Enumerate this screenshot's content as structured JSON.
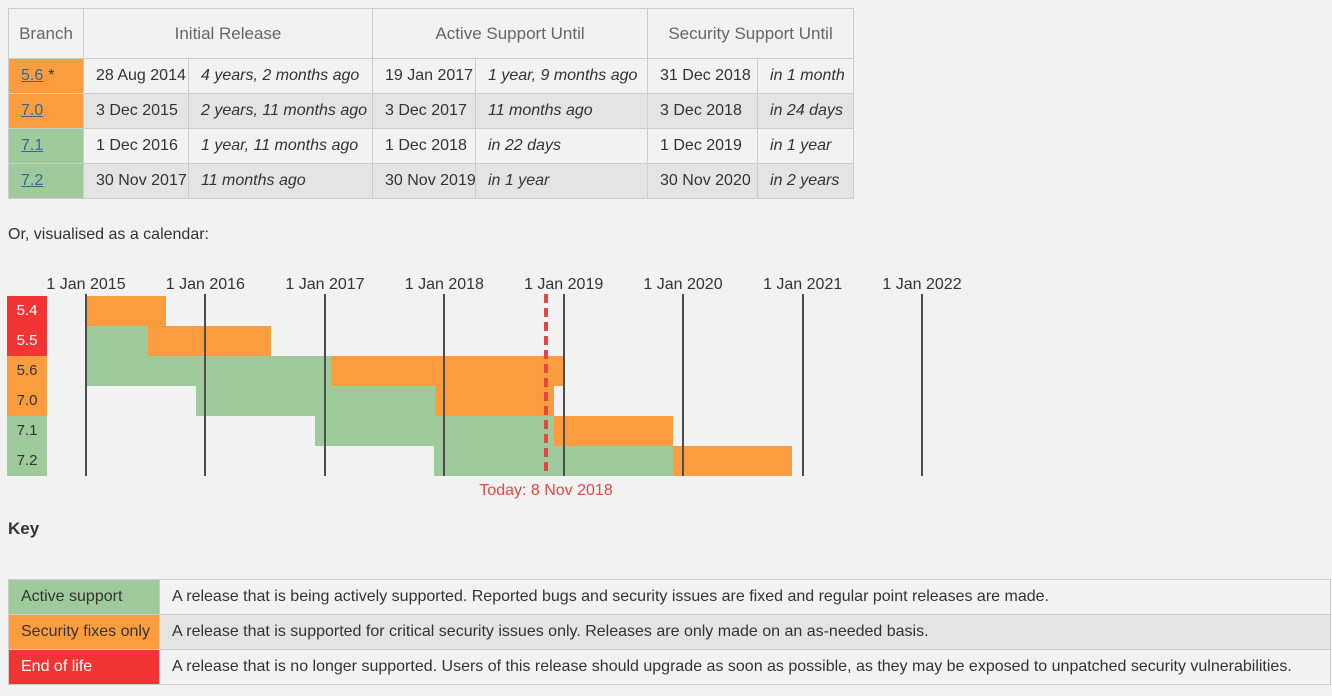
{
  "colors": {
    "active_support": "#9fca9c",
    "security_fixes": "#fb9d3f",
    "end_of_life": "#f23434",
    "link": "#336699",
    "today_marker": "#e84444",
    "page_background": "#f2f2f2",
    "alt_row": "#e4e4e4",
    "border": "#cccccc"
  },
  "support_table": {
    "headers": {
      "branch": "Branch",
      "initial": "Initial Release",
      "active": "Active Support Until",
      "security": "Security Support Until"
    },
    "rows": [
      {
        "branch": "5.6",
        "suffix": "*",
        "branch_status": "security",
        "initial": {
          "date": "28 Aug 2014",
          "relative": "4 years, 2 months ago"
        },
        "active": {
          "date": "19 Jan 2017",
          "relative": "1 year, 9 months ago"
        },
        "security": {
          "date": "31 Dec 2018",
          "relative": "in 1 month"
        }
      },
      {
        "branch": "7.0",
        "suffix": "",
        "branch_status": "security",
        "initial": {
          "date": "3 Dec 2015",
          "relative": "2 years, 11 months ago"
        },
        "active": {
          "date": "3 Dec 2017",
          "relative": "11 months ago"
        },
        "security": {
          "date": "3 Dec 2018",
          "relative": "in 24 days"
        }
      },
      {
        "branch": "7.1",
        "suffix": "",
        "branch_status": "active",
        "initial": {
          "date": "1 Dec 2016",
          "relative": "1 year, 11 months ago"
        },
        "active": {
          "date": "1 Dec 2018",
          "relative": "in 22 days"
        },
        "security": {
          "date": "1 Dec 2019",
          "relative": "in 1 year"
        }
      },
      {
        "branch": "7.2",
        "suffix": "",
        "branch_status": "active",
        "initial": {
          "date": "30 Nov 2017",
          "relative": "11 months ago"
        },
        "active": {
          "date": "30 Nov 2019",
          "relative": "in 1 year"
        },
        "security": {
          "date": "30 Nov 2020",
          "relative": "in 2 years"
        }
      }
    ]
  },
  "chart_data": {
    "type": "gantt",
    "intro": "Or, visualised as a calendar:",
    "x_ticks": [
      {
        "label": "1 Jan 2015",
        "date": "2015-01-01"
      },
      {
        "label": "1 Jan 2016",
        "date": "2016-01-01"
      },
      {
        "label": "1 Jan 2017",
        "date": "2017-01-01"
      },
      {
        "label": "1 Jan 2018",
        "date": "2018-01-01"
      },
      {
        "label": "1 Jan 2019",
        "date": "2019-01-01"
      },
      {
        "label": "1 Jan 2020",
        "date": "2020-01-01"
      },
      {
        "label": "1 Jan 2021",
        "date": "2021-01-01"
      },
      {
        "label": "1 Jan 2022",
        "date": "2022-01-01"
      }
    ],
    "today": {
      "label": "Today: 8 Nov 2018",
      "date": "2018-11-08"
    },
    "rows": [
      {
        "branch": "5.4",
        "status": "eol",
        "segments": [
          {
            "type": "security",
            "start": "2015-01-01",
            "end": "2015-09-03"
          }
        ]
      },
      {
        "branch": "5.5",
        "status": "eol",
        "segments": [
          {
            "type": "active",
            "start": "2015-01-01",
            "end": "2015-07-10"
          },
          {
            "type": "security",
            "start": "2015-07-10",
            "end": "2016-07-21"
          }
        ]
      },
      {
        "branch": "5.6",
        "status": "security",
        "segments": [
          {
            "type": "active",
            "start": "2015-01-01",
            "end": "2017-01-19"
          },
          {
            "type": "security",
            "start": "2017-01-19",
            "end": "2018-12-31"
          }
        ]
      },
      {
        "branch": "7.0",
        "status": "security",
        "segments": [
          {
            "type": "active",
            "start": "2015-12-03",
            "end": "2017-12-03"
          },
          {
            "type": "security",
            "start": "2017-12-03",
            "end": "2018-12-03"
          }
        ]
      },
      {
        "branch": "7.1",
        "status": "active",
        "segments": [
          {
            "type": "active",
            "start": "2016-12-01",
            "end": "2018-12-01"
          },
          {
            "type": "security",
            "start": "2018-12-01",
            "end": "2019-12-01"
          }
        ]
      },
      {
        "branch": "7.2",
        "status": "active",
        "segments": [
          {
            "type": "active",
            "start": "2017-11-30",
            "end": "2019-11-30"
          },
          {
            "type": "security",
            "start": "2019-11-30",
            "end": "2020-11-30"
          }
        ]
      }
    ],
    "axis_range": {
      "start": "2015-01-01",
      "end": "2022-01-01"
    }
  },
  "key": {
    "heading": "Key",
    "items": [
      {
        "label": "Active support",
        "status": "active",
        "description": "A release that is being actively supported. Reported bugs and security issues are fixed and regular point releases are made."
      },
      {
        "label": "Security fixes only",
        "status": "security",
        "description": "A release that is supported for critical security issues only. Releases are only made on an as-needed basis."
      },
      {
        "label": "End of life",
        "status": "eol",
        "description": "A release that is no longer supported. Users of this release should upgrade as soon as possible, as they may be exposed to unpatched security vulnerabilities."
      }
    ]
  }
}
